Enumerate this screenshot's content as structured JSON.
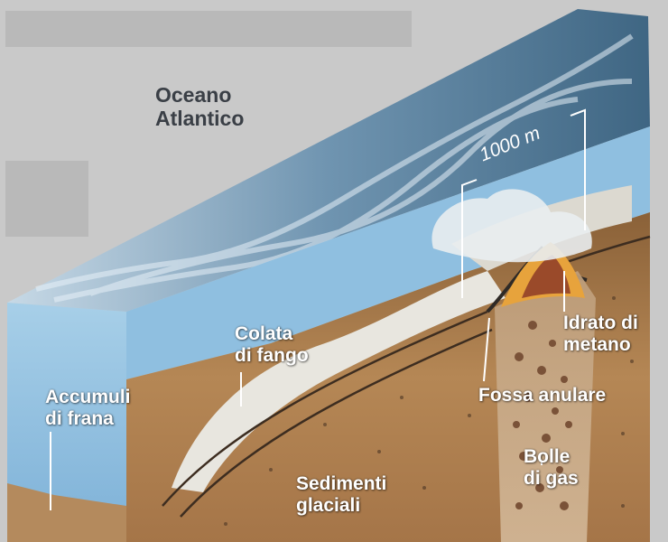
{
  "labels": {
    "ocean": [
      "Oceano",
      "Atlantico"
    ],
    "scale": "1000 m",
    "mudflow": [
      "Colata",
      "di fango"
    ],
    "landslide": [
      "Accumuli",
      "di frana"
    ],
    "hydrate": [
      "Idrato di",
      "metano"
    ],
    "pit": "Fossa anulare",
    "bubbles": [
      "Bolle",
      "di gas"
    ],
    "sediments": [
      "Sedimenti",
      "glaciali"
    ]
  },
  "colors": {
    "background": "#c9c9c9",
    "water_face": "#8fbfe0",
    "sea_surface": "#5e88a8",
    "sediment": "#a97a4a",
    "hydrate": "#e7a33c"
  }
}
